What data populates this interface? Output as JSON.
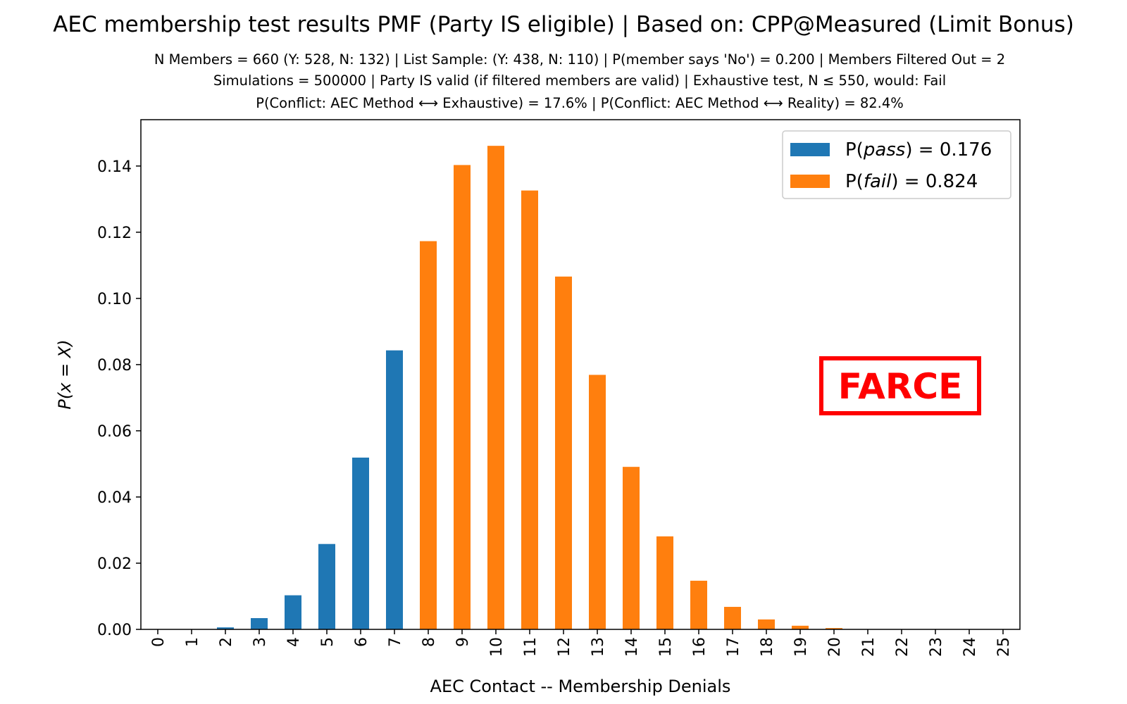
{
  "chart_data": {
    "type": "bar",
    "title": "AEC membership test results PMF (Party IS eligible) | Based on: CPP@Measured (Limit Bonus)",
    "subtitle_lines": [
      "N Members = 660 (Y: 528, N: 132) | List Sample: (Y: 438, N: 110) | P(member says 'No') = 0.200 | Members Filtered Out = 2",
      "Simulations = 500000 | Party IS valid (if filtered members are valid) | Exhaustive test, N ≤ 550, would: Fail",
      "P(Conflict: AEC Method ⟷ Exhaustive) = 17.6% | P(Conflict: AEC Method ⟷ Reality) = 82.4%"
    ],
    "xlabel": "AEC Contact -- Membership Denials",
    "ylabel": "P(x = X)",
    "categories": [
      "0",
      "1",
      "2",
      "3",
      "4",
      "5",
      "6",
      "7",
      "8",
      "9",
      "10",
      "11",
      "12",
      "13",
      "14",
      "15",
      "16",
      "17",
      "18",
      "19",
      "20",
      "21",
      "22",
      "23",
      "24",
      "25"
    ],
    "values": [
      1e-05,
      6e-05,
      0.0006,
      0.0034,
      0.0103,
      0.0258,
      0.0519,
      0.0843,
      0.1173,
      0.1403,
      0.1461,
      0.1326,
      0.1066,
      0.0769,
      0.0491,
      0.0281,
      0.0147,
      0.0068,
      0.003,
      0.0011,
      0.0004,
      0.0001,
      3e-05,
      1e-05,
      0.0,
      0.0
    ],
    "pass_threshold": 7,
    "ylim": [
      0,
      0.154
    ],
    "yticks": [
      "0.00",
      "0.02",
      "0.04",
      "0.06",
      "0.08",
      "0.10",
      "0.12",
      "0.14"
    ],
    "ytick_values": [
      0,
      0.02,
      0.04,
      0.06,
      0.08,
      0.1,
      0.12,
      0.14
    ],
    "colors": {
      "pass": "#1f77b4",
      "fail": "#ff7f0e"
    },
    "legend": {
      "position": "top-right",
      "pass_label": "P(pass) = 0.176",
      "fail_label": "P(fail) = 0.824",
      "pass_prefix": "P(",
      "pass_word": "pass",
      "pass_suffix": ") = 0.176",
      "fail_prefix": "P(",
      "fail_word": "fail",
      "fail_suffix": ") = 0.824"
    },
    "stamp": {
      "text": "FARCE",
      "color": "#ff0000"
    },
    "grid": false
  }
}
